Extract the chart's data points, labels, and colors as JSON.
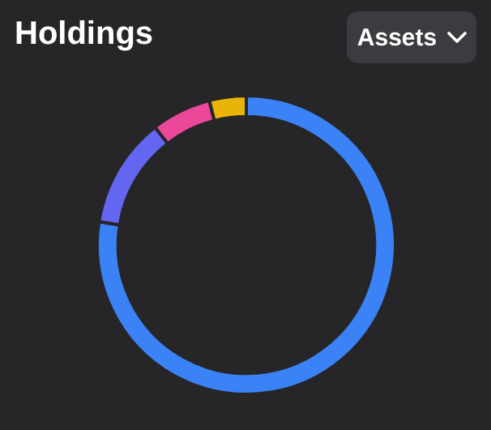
{
  "chart_data": {
    "type": "donut",
    "title": "Holdings",
    "annotations": [
      "Assets"
    ],
    "categories": [
      null,
      null,
      null,
      null
    ],
    "values": [
      77.5,
      12,
      6.5,
      4
    ],
    "colors": [
      "#3b82f6",
      "#6366f1",
      "#ec4899",
      "#eab308"
    ],
    "legend": false
  }
}
